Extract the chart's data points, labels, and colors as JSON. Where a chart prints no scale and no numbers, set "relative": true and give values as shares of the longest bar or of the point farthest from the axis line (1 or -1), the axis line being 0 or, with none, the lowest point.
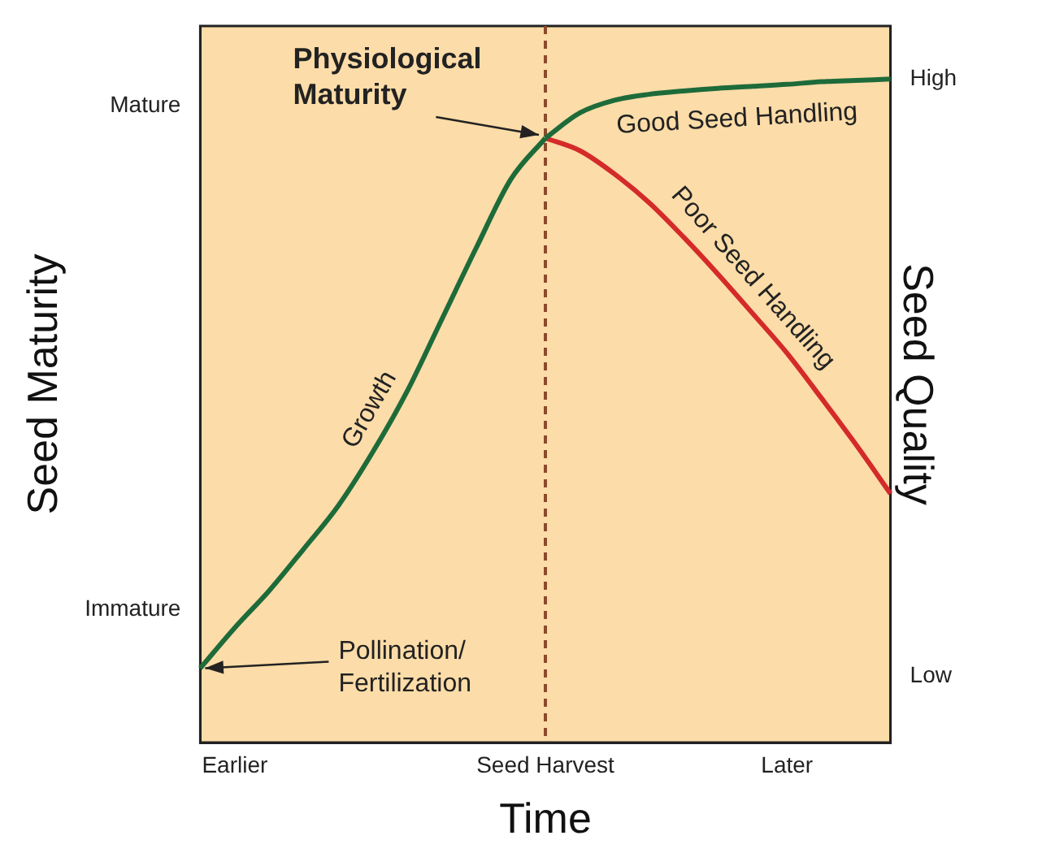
{
  "chart_data": {
    "type": "line",
    "xlabel": "Time",
    "ylabel": "Seed Maturity",
    "y2label": "Seed Quality",
    "relative": true,
    "categories": [
      null,
      "Earlier",
      null,
      null,
      null,
      null,
      null,
      null,
      null,
      null,
      "Seed Harvest",
      null,
      null,
      null,
      null,
      null,
      null,
      "Later",
      null,
      null,
      null
    ],
    "series": [
      {
        "name": "Growth",
        "color": "#1e6b3a",
        "values": [
          0.112,
          0.173,
          0.229,
          0.292,
          0.357,
          0.438,
          0.53,
          0.638,
          0.746,
          0.849,
          0.911,
          null,
          null,
          null,
          null,
          null,
          null,
          null,
          null,
          null,
          null
        ]
      },
      {
        "name": "Good Seed Handling",
        "color": "#1e6b3a",
        "values": [
          null,
          null,
          null,
          null,
          null,
          null,
          null,
          null,
          null,
          null,
          0.911,
          0.949,
          0.968,
          0.977,
          0.982,
          0.986,
          0.989,
          0.992,
          0.996,
          0.998,
          1
        ]
      },
      {
        "name": "Poor Seed Handling",
        "color": "#d42a2a",
        "values": [
          null,
          null,
          null,
          null,
          null,
          null,
          null,
          null,
          null,
          null,
          0.911,
          0.892,
          0.857,
          0.814,
          0.762,
          0.706,
          0.647,
          0.587,
          0.519,
          0.449,
          0.375
        ]
      }
    ],
    "ref_lines": [
      {
        "axis": "x",
        "value": "Seed Harvest",
        "color": "#8b4a2b",
        "line_style": "dashed"
      }
    ],
    "annotations": [
      {
        "text": "Physiological\nMaturity",
        "x": "Seed Harvest",
        "y": 0.911
      },
      "Pollination/\nFertilization",
      "Mature",
      "Immature",
      "High",
      "Low"
    ],
    "grid": false,
    "legend": false,
    "marker": "none",
    "line_style": "solid"
  }
}
